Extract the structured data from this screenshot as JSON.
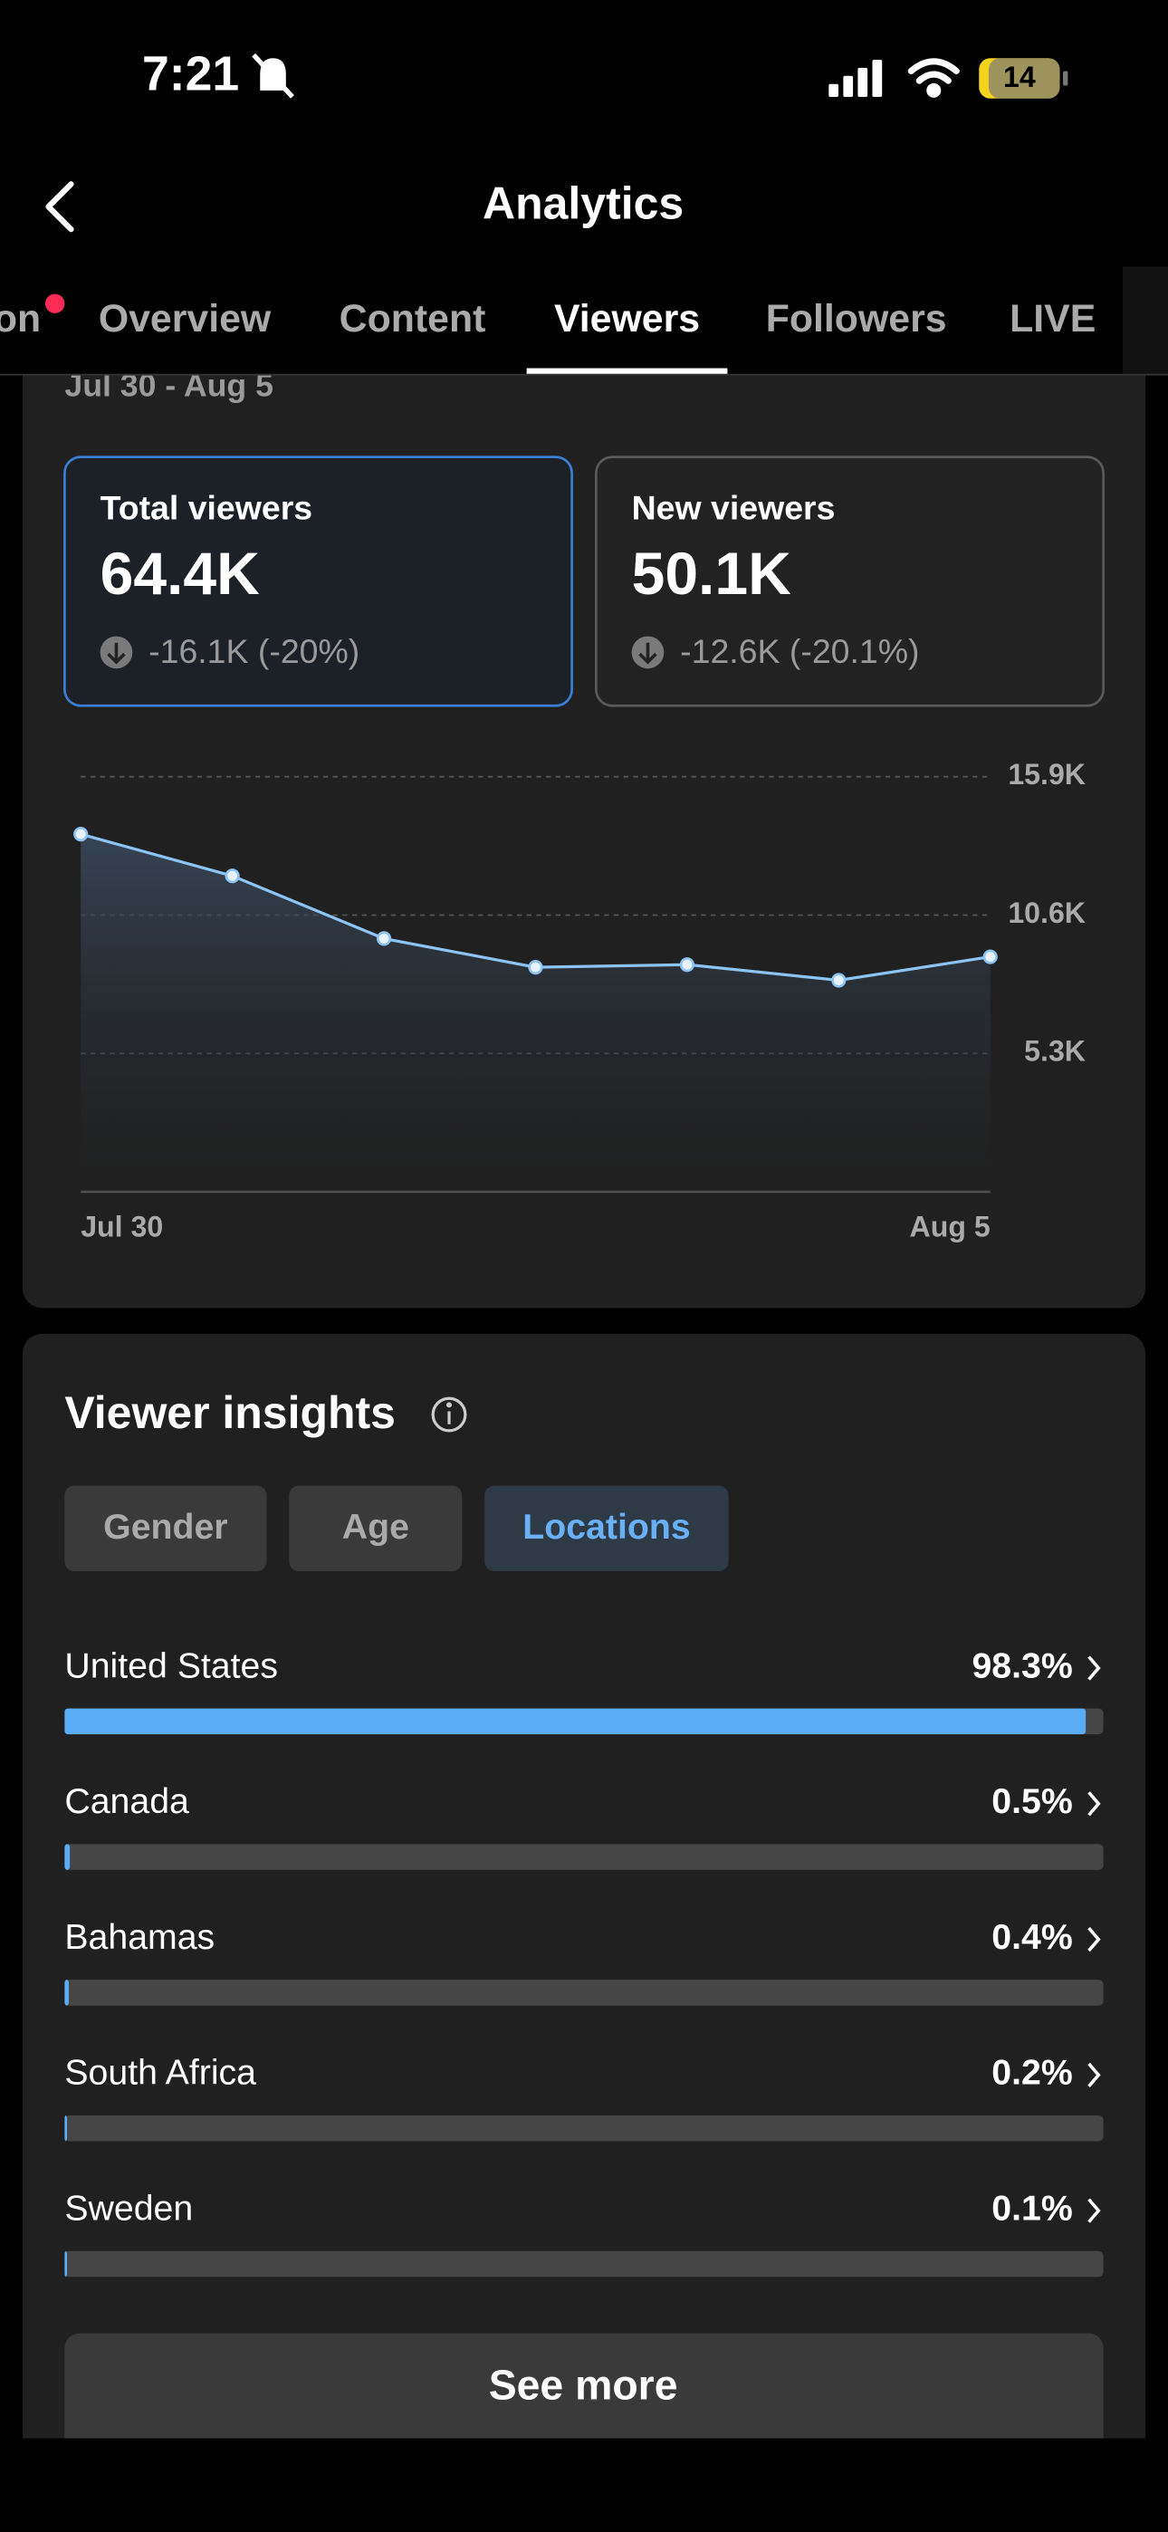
{
  "status_bar": {
    "time": "7:21",
    "battery": "14"
  },
  "header": {
    "title": "Analytics"
  },
  "tabs": [
    "on",
    "Overview",
    "Content",
    "Viewers",
    "Followers",
    "LIVE"
  ],
  "date_range": "Jul 30 - Aug 5",
  "cards": [
    {
      "label": "Total viewers",
      "value": "64.4K",
      "change": "-16.1K (-20%)"
    },
    {
      "label": "New viewers",
      "value": "50.1K",
      "change": "-12.6K (-20.1%)"
    }
  ],
  "chart_data": [
    {
      "type": "line",
      "categories": [
        "Jul 30",
        null,
        null,
        null,
        null,
        null,
        "Aug 5"
      ],
      "values": [
        13700,
        12100,
        9700,
        8600,
        8700,
        8100,
        9000
      ],
      "color": "#8cc4f5",
      "ylim": [
        0,
        15900
      ],
      "yticks": [
        {
          "value": 5300,
          "label": "5.3K"
        },
        {
          "value": 10600,
          "label": "10.6K"
        },
        {
          "value": 15900,
          "label": "15.9K"
        }
      ],
      "grid": true
    },
    {
      "type": "bar",
      "orientation": "horizontal",
      "categories": [
        "United States",
        "Canada",
        "Bahamas",
        "South Africa",
        "Sweden"
      ],
      "values": [
        98.3,
        0.5,
        0.4,
        0.2,
        0.1
      ],
      "value_labels": [
        "98.3%",
        "0.5%",
        "0.4%",
        "0.2%",
        "0.1%"
      ],
      "xlim": [
        0,
        100
      ],
      "color": "#5aadf5"
    }
  ],
  "insights": {
    "title": "Viewer insights",
    "filters": [
      "Gender",
      "Age",
      "Locations"
    ],
    "active_filter": 2,
    "button": "See more"
  }
}
